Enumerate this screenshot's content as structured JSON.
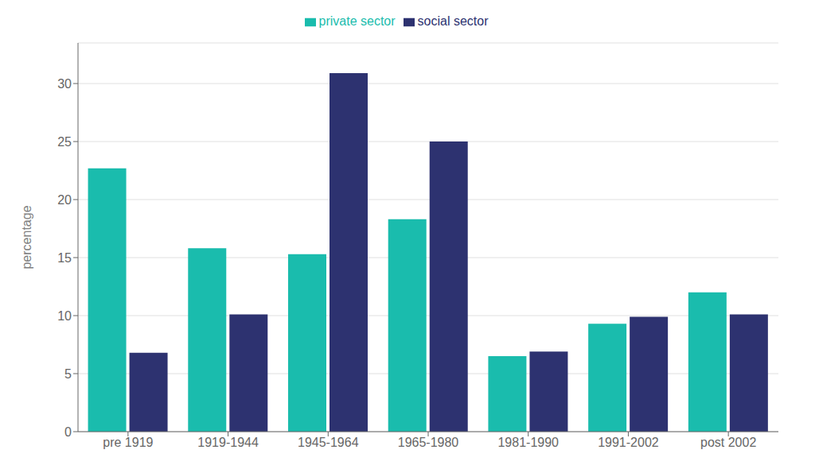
{
  "chart_data": {
    "type": "bar",
    "categories": [
      "pre 1919",
      "1919-1944",
      "1945-1964",
      "1965-1980",
      "1981-1990",
      "1991-2002",
      "post 2002"
    ],
    "series": [
      {
        "name": "private sector",
        "color": "#1ABCAD",
        "values": [
          22.7,
          15.8,
          15.3,
          18.3,
          6.5,
          9.3,
          12.0
        ]
      },
      {
        "name": "social sector",
        "color": "#2D3270",
        "values": [
          6.8,
          10.1,
          30.9,
          25.0,
          6.9,
          9.9,
          10.1
        ]
      }
    ],
    "ylabel": "percentage",
    "ylim": [
      0,
      33.5
    ],
    "yticks": [
      0,
      5,
      10,
      15,
      20,
      25,
      30
    ],
    "grid": true,
    "legend": "top"
  }
}
